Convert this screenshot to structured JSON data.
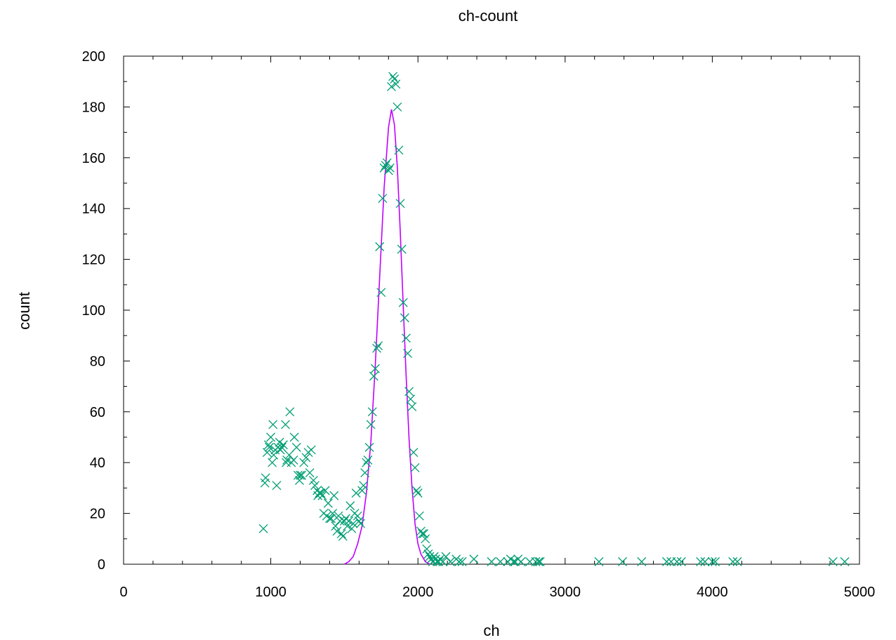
{
  "chart_data": {
    "type": "scatter",
    "title": "ch-count",
    "xlabel": "ch",
    "ylabel": "count",
    "xlim": [
      0,
      5000
    ],
    "ylim": [
      0,
      200
    ],
    "xticks": [
      0,
      1000,
      2000,
      3000,
      4000,
      5000
    ],
    "yticks": [
      0,
      20,
      40,
      60,
      80,
      100,
      120,
      140,
      160,
      180,
      200
    ],
    "xtick_labels": [
      "0",
      "1000",
      "2000",
      "3000",
      "4000",
      "5000"
    ],
    "ytick_labels": [
      "0",
      "20",
      "40",
      "60",
      "80",
      "100",
      "120",
      "140",
      "160",
      "180",
      "200"
    ],
    "grid": false,
    "series": [
      {
        "kind": "points",
        "marker": "x",
        "color": "#009e73",
        "points": [
          [
            950,
            14
          ],
          [
            960,
            32
          ],
          [
            965,
            34
          ],
          [
            975,
            44
          ],
          [
            985,
            47
          ],
          [
            990,
            46
          ],
          [
            1000,
            50
          ],
          [
            1010,
            40
          ],
          [
            1015,
            55
          ],
          [
            1020,
            43
          ],
          [
            1030,
            45
          ],
          [
            1040,
            31
          ],
          [
            1050,
            46
          ],
          [
            1060,
            48
          ],
          [
            1065,
            45
          ],
          [
            1075,
            46
          ],
          [
            1085,
            47
          ],
          [
            1100,
            55
          ],
          [
            1105,
            40
          ],
          [
            1110,
            41
          ],
          [
            1125,
            43
          ],
          [
            1130,
            60
          ],
          [
            1140,
            40
          ],
          [
            1155,
            41
          ],
          [
            1160,
            50
          ],
          [
            1175,
            46
          ],
          [
            1185,
            35
          ],
          [
            1195,
            33
          ],
          [
            1200,
            35
          ],
          [
            1210,
            35
          ],
          [
            1225,
            40
          ],
          [
            1240,
            42
          ],
          [
            1255,
            44
          ],
          [
            1265,
            36
          ],
          [
            1275,
            45
          ],
          [
            1290,
            33
          ],
          [
            1300,
            31
          ],
          [
            1315,
            29
          ],
          [
            1320,
            27
          ],
          [
            1330,
            28
          ],
          [
            1340,
            28
          ],
          [
            1350,
            27
          ],
          [
            1360,
            20
          ],
          [
            1370,
            29
          ],
          [
            1380,
            19
          ],
          [
            1390,
            24
          ],
          [
            1400,
            18
          ],
          [
            1410,
            18
          ],
          [
            1420,
            20
          ],
          [
            1430,
            27
          ],
          [
            1440,
            15
          ],
          [
            1450,
            13
          ],
          [
            1460,
            19
          ],
          [
            1470,
            17
          ],
          [
            1480,
            12
          ],
          [
            1490,
            11
          ],
          [
            1500,
            17
          ],
          [
            1510,
            18
          ],
          [
            1520,
            15
          ],
          [
            1530,
            17
          ],
          [
            1540,
            23
          ],
          [
            1550,
            14
          ],
          [
            1560,
            16
          ],
          [
            1570,
            20
          ],
          [
            1580,
            28
          ],
          [
            1590,
            19
          ],
          [
            1600,
            17
          ],
          [
            1610,
            16
          ],
          [
            1620,
            29
          ],
          [
            1630,
            31
          ],
          [
            1640,
            36
          ],
          [
            1650,
            40
          ],
          [
            1660,
            41
          ],
          [
            1670,
            46
          ],
          [
            1680,
            55
          ],
          [
            1690,
            60
          ],
          [
            1700,
            74
          ],
          [
            1710,
            77
          ],
          [
            1720,
            85
          ],
          [
            1730,
            86
          ],
          [
            1740,
            125
          ],
          [
            1750,
            107
          ],
          [
            1760,
            144
          ],
          [
            1770,
            156
          ],
          [
            1780,
            157
          ],
          [
            1790,
            158
          ],
          [
            1800,
            155
          ],
          [
            1810,
            156
          ],
          [
            1820,
            188
          ],
          [
            1830,
            192
          ],
          [
            1840,
            191
          ],
          [
            1850,
            189
          ],
          [
            1860,
            180
          ],
          [
            1870,
            163
          ],
          [
            1880,
            142
          ],
          [
            1890,
            124
          ],
          [
            1900,
            103
          ],
          [
            1910,
            97
          ],
          [
            1920,
            89
          ],
          [
            1930,
            83
          ],
          [
            1940,
            68
          ],
          [
            1950,
            65
          ],
          [
            1960,
            62
          ],
          [
            1970,
            44
          ],
          [
            1980,
            38
          ],
          [
            1990,
            29
          ],
          [
            2000,
            28
          ],
          [
            2010,
            19
          ],
          [
            2020,
            13
          ],
          [
            2030,
            12
          ],
          [
            2040,
            12
          ],
          [
            2050,
            10
          ],
          [
            2060,
            6
          ],
          [
            2070,
            4
          ],
          [
            2080,
            3
          ],
          [
            2090,
            2
          ],
          [
            2100,
            1
          ],
          [
            2110,
            3
          ],
          [
            2120,
            2
          ],
          [
            2130,
            1
          ],
          [
            2140,
            1
          ],
          [
            2150,
            2
          ],
          [
            2170,
            1
          ],
          [
            2190,
            3
          ],
          [
            2220,
            1
          ],
          [
            2260,
            2
          ],
          [
            2280,
            1
          ],
          [
            2300,
            1
          ],
          [
            2380,
            2
          ],
          [
            2500,
            1
          ],
          [
            2560,
            1
          ],
          [
            2610,
            1
          ],
          [
            2630,
            2
          ],
          [
            2650,
            1
          ],
          [
            2660,
            1
          ],
          [
            2680,
            2
          ],
          [
            2700,
            1
          ],
          [
            2760,
            1
          ],
          [
            2800,
            1
          ],
          [
            2820,
            1
          ],
          [
            2830,
            1
          ],
          [
            3230,
            1
          ],
          [
            3390,
            1
          ],
          [
            3520,
            1
          ],
          [
            3690,
            1
          ],
          [
            3720,
            1
          ],
          [
            3760,
            1
          ],
          [
            3790,
            1
          ],
          [
            3920,
            1
          ],
          [
            3950,
            1
          ],
          [
            4000,
            1
          ],
          [
            4020,
            1
          ],
          [
            4140,
            1
          ],
          [
            4170,
            1
          ],
          [
            4820,
            1
          ],
          [
            4900,
            1
          ]
        ]
      },
      {
        "kind": "line",
        "color": "#c000ff",
        "points": [
          [
            1500,
            0
          ],
          [
            1530,
            1
          ],
          [
            1560,
            3
          ],
          [
            1590,
            8
          ],
          [
            1620,
            15
          ],
          [
            1650,
            28
          ],
          [
            1680,
            48
          ],
          [
            1710,
            78
          ],
          [
            1740,
            113
          ],
          [
            1770,
            148
          ],
          [
            1800,
            172
          ],
          [
            1820,
            179
          ],
          [
            1840,
            173
          ],
          [
            1860,
            156
          ],
          [
            1880,
            131
          ],
          [
            1900,
            102
          ],
          [
            1920,
            74
          ],
          [
            1940,
            49
          ],
          [
            1960,
            30
          ],
          [
            1980,
            16
          ],
          [
            2000,
            8
          ],
          [
            2020,
            4
          ],
          [
            2050,
            1
          ],
          [
            2080,
            0
          ]
        ]
      }
    ]
  }
}
